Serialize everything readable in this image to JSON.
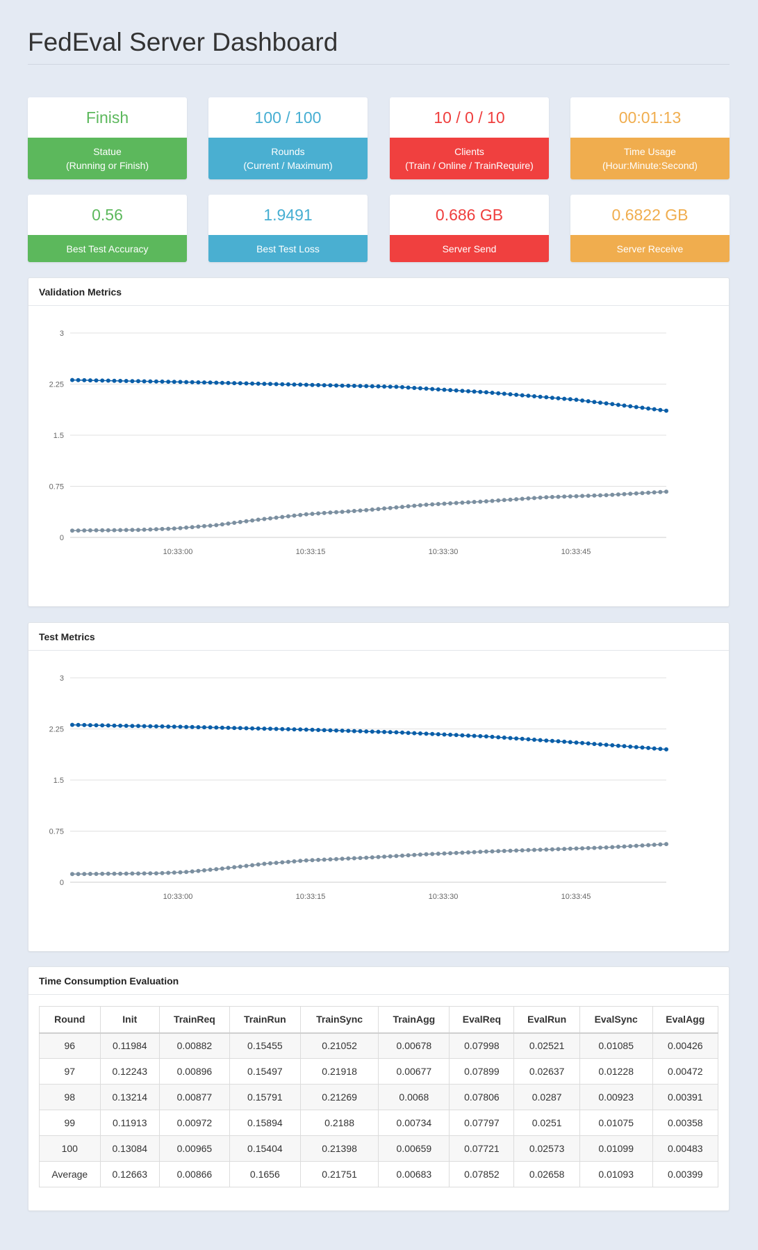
{
  "header": {
    "title": "FedEval Server Dashboard"
  },
  "stats_top": [
    {
      "value": "Finish",
      "label": "Statue",
      "sub": "(Running or Finish)"
    },
    {
      "value": "100 / 100",
      "label": "Rounds",
      "sub": "(Current / Maximum)"
    },
    {
      "value": "10 / 0 / 10",
      "label": "Clients",
      "sub": "(Train / Online / TrainRequire)"
    },
    {
      "value": "00:01:13",
      "label": "Time Usage",
      "sub": "(Hour:Minute:Second)"
    }
  ],
  "stats_bottom": [
    {
      "value": "0.56",
      "label": "Best Test Accuracy"
    },
    {
      "value": "1.9491",
      "label": "Best Test Loss"
    },
    {
      "value": "0.686 GB",
      "label": "Server Send"
    },
    {
      "value": "0.6822 GB",
      "label": "Server Receive"
    }
  ],
  "colors": {
    "green": "#5cb85c",
    "blue": "#4aafd1",
    "red": "#f0403f",
    "orange": "#f0ad4e",
    "loss_series": "#0a5ea8",
    "acc_series": "#7b8fa0"
  },
  "validation_panel": {
    "title": "Validation Metrics"
  },
  "test_panel": {
    "title": "Test Metrics"
  },
  "chart_data": [
    {
      "type": "line",
      "x_ticks": [
        "10:33:00",
        "10:33:15",
        "10:33:30",
        "10:33:45"
      ],
      "y_ticks": [
        "0",
        "0.75",
        "1.5",
        "2.25",
        "3"
      ],
      "ylim": [
        0,
        3
      ],
      "rounds": [
        1,
        100
      ],
      "grid": true,
      "legend": "none",
      "series": [
        {
          "color": "#0a5ea8",
          "keypoints": [
            [
              1,
              2.31
            ],
            [
              20,
              2.28
            ],
            [
              40,
              2.24
            ],
            [
              55,
              2.21
            ],
            [
              70,
              2.13
            ],
            [
              85,
              2.02
            ],
            [
              100,
              1.86
            ]
          ]
        },
        {
          "color": "#7b8fa0",
          "keypoints": [
            [
              1,
              0.1
            ],
            [
              12,
              0.11
            ],
            [
              18,
              0.13
            ],
            [
              25,
              0.18
            ],
            [
              32,
              0.26
            ],
            [
              40,
              0.34
            ],
            [
              50,
              0.4
            ],
            [
              60,
              0.48
            ],
            [
              70,
              0.53
            ],
            [
              80,
              0.59
            ],
            [
              90,
              0.62
            ],
            [
              100,
              0.67
            ]
          ]
        }
      ]
    },
    {
      "type": "line",
      "x_ticks": [
        "10:33:00",
        "10:33:15",
        "10:33:30",
        "10:33:45"
      ],
      "y_ticks": [
        "0",
        "0.75",
        "1.5",
        "2.25",
        "3"
      ],
      "ylim": [
        0,
        3
      ],
      "rounds": [
        1,
        100
      ],
      "grid": true,
      "legend": "none",
      "series": [
        {
          "color": "#0a5ea8",
          "keypoints": [
            [
              1,
              2.31
            ],
            [
              20,
              2.28
            ],
            [
              40,
              2.24
            ],
            [
              55,
              2.2
            ],
            [
              70,
              2.14
            ],
            [
              85,
              2.05
            ],
            [
              100,
              1.95
            ]
          ]
        },
        {
          "color": "#7b8fa0",
          "keypoints": [
            [
              1,
              0.12
            ],
            [
              15,
              0.13
            ],
            [
              20,
              0.15
            ],
            [
              26,
              0.2
            ],
            [
              33,
              0.27
            ],
            [
              40,
              0.32
            ],
            [
              50,
              0.36
            ],
            [
              60,
              0.41
            ],
            [
              70,
              0.45
            ],
            [
              80,
              0.48
            ],
            [
              90,
              0.51
            ],
            [
              100,
              0.56
            ]
          ]
        }
      ]
    }
  ],
  "time_table": {
    "title": "Time Consumption Evaluation",
    "columns": [
      "Round",
      "Init",
      "TrainReq",
      "TrainRun",
      "TrainSync",
      "TrainAgg",
      "EvalReq",
      "EvalRun",
      "EvalSync",
      "EvalAgg"
    ],
    "rows": [
      [
        "96",
        "0.11984",
        "0.00882",
        "0.15455",
        "0.21052",
        "0.00678",
        "0.07998",
        "0.02521",
        "0.01085",
        "0.00426"
      ],
      [
        "97",
        "0.12243",
        "0.00896",
        "0.15497",
        "0.21918",
        "0.00677",
        "0.07899",
        "0.02637",
        "0.01228",
        "0.00472"
      ],
      [
        "98",
        "0.13214",
        "0.00877",
        "0.15791",
        "0.21269",
        "0.0068",
        "0.07806",
        "0.0287",
        "0.00923",
        "0.00391"
      ],
      [
        "99",
        "0.11913",
        "0.00972",
        "0.15894",
        "0.2188",
        "0.00734",
        "0.07797",
        "0.0251",
        "0.01075",
        "0.00358"
      ],
      [
        "100",
        "0.13084",
        "0.00965",
        "0.15404",
        "0.21398",
        "0.00659",
        "0.07721",
        "0.02573",
        "0.01099",
        "0.00483"
      ],
      [
        "Average",
        "0.12663",
        "0.00866",
        "0.1656",
        "0.21751",
        "0.00683",
        "0.07852",
        "0.02658",
        "0.01093",
        "0.00399"
      ]
    ]
  }
}
